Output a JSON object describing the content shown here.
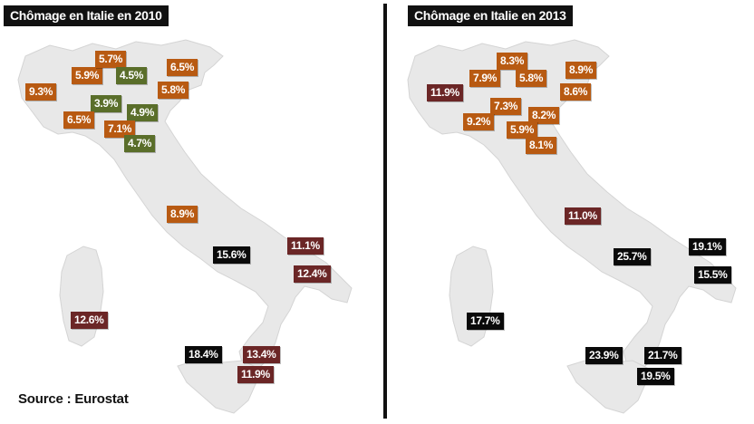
{
  "colors": {
    "low": "#5a6e2a",
    "mid": "#b85a12",
    "high": "#6b2626",
    "very_high": "#0a0a0a",
    "land": "#e8e8e8",
    "land_stroke": "#d4d4d4"
  },
  "left_map": {
    "title": "Chômage en Italie en 2010",
    "regions": [
      {
        "label": "9.3%",
        "value": 9.3,
        "category": "mid"
      },
      {
        "label": "5.9%",
        "value": 5.9,
        "category": "mid"
      },
      {
        "label": "5.7%",
        "value": 5.7,
        "category": "mid"
      },
      {
        "label": "4.5%",
        "value": 4.5,
        "category": "low"
      },
      {
        "label": "6.5%",
        "value": 6.5,
        "category": "mid"
      },
      {
        "label": "5.8%",
        "value": 5.8,
        "category": "mid"
      },
      {
        "label": "3.9%",
        "value": 3.9,
        "category": "low"
      },
      {
        "label": "4.9%",
        "value": 4.9,
        "category": "low"
      },
      {
        "label": "6.5%",
        "value": 6.5,
        "category": "mid"
      },
      {
        "label": "7.1%",
        "value": 7.1,
        "category": "mid"
      },
      {
        "label": "4.7%",
        "value": 4.7,
        "category": "low"
      },
      {
        "label": "8.9%",
        "value": 8.9,
        "category": "mid"
      },
      {
        "label": "15.6%",
        "value": 15.6,
        "category": "very_high"
      },
      {
        "label": "11.1%",
        "value": 11.1,
        "category": "high"
      },
      {
        "label": "12.4%",
        "value": 12.4,
        "category": "high"
      },
      {
        "label": "12.6%",
        "value": 12.6,
        "category": "high"
      },
      {
        "label": "18.4%",
        "value": 18.4,
        "category": "very_high"
      },
      {
        "label": "13.4%",
        "value": 13.4,
        "category": "high"
      },
      {
        "label": "11.9%",
        "value": 11.9,
        "category": "high"
      }
    ]
  },
  "right_map": {
    "title": "Chômage en Italie en 2013",
    "regions": [
      {
        "label": "11.9%",
        "value": 11.9,
        "category": "high"
      },
      {
        "label": "8.3%",
        "value": 8.3,
        "category": "mid"
      },
      {
        "label": "7.9%",
        "value": 7.9,
        "category": "mid"
      },
      {
        "label": "5.8%",
        "value": 5.8,
        "category": "mid"
      },
      {
        "label": "8.9%",
        "value": 8.9,
        "category": "mid"
      },
      {
        "label": "8.6%",
        "value": 8.6,
        "category": "mid"
      },
      {
        "label": "7.3%",
        "value": 7.3,
        "category": "mid"
      },
      {
        "label": "9.2%",
        "value": 9.2,
        "category": "mid"
      },
      {
        "label": "8.2%",
        "value": 8.2,
        "category": "mid"
      },
      {
        "label": "5.9%",
        "value": 5.9,
        "category": "mid"
      },
      {
        "label": "8.1%",
        "value": 8.1,
        "category": "mid"
      },
      {
        "label": "11.0%",
        "value": 11.0,
        "category": "high"
      },
      {
        "label": "25.7%",
        "value": 25.7,
        "category": "very_high"
      },
      {
        "label": "19.1%",
        "value": 19.1,
        "category": "very_high"
      },
      {
        "label": "15.5%",
        "value": 15.5,
        "category": "very_high"
      },
      {
        "label": "17.7%",
        "value": 17.7,
        "category": "very_high"
      },
      {
        "label": "23.9%",
        "value": 23.9,
        "category": "very_high"
      },
      {
        "label": "21.7%",
        "value": 21.7,
        "category": "very_high"
      },
      {
        "label": "19.5%",
        "value": 19.5,
        "category": "very_high"
      }
    ]
  },
  "source": "Source : Eurostat"
}
